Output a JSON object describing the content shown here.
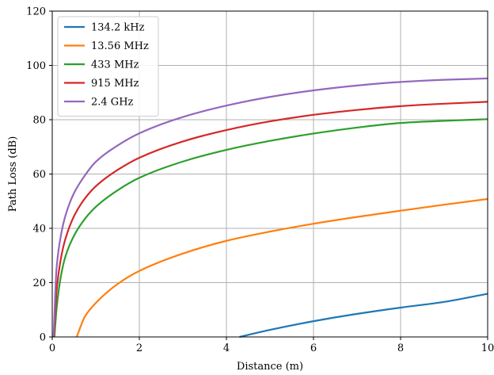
{
  "chart_data": {
    "type": "line",
    "title": "",
    "xlabel": "Distance (m)",
    "ylabel": "Path Loss (dB)",
    "xlim": [
      0,
      10
    ],
    "ylim": [
      0,
      120
    ],
    "xticks": [
      0,
      2,
      4,
      6,
      8,
      10
    ],
    "yticks": [
      0,
      20,
      40,
      60,
      80,
      100,
      120
    ],
    "grid": true,
    "legend_position": "top-left",
    "series": [
      {
        "name": "134.2 kHz",
        "color": "#1f77b4",
        "x": [
          4.3,
          5,
          6,
          7,
          8,
          9,
          10
        ],
        "y": [
          0,
          2.6,
          5.8,
          8.5,
          10.8,
          12.9,
          15.9
        ]
      },
      {
        "name": "13.56 MHz",
        "color": "#ff7f0e",
        "x": [
          0.56,
          0.75,
          1,
          1.5,
          2,
          3,
          4,
          5,
          6,
          7,
          8,
          9,
          10
        ],
        "y": [
          0,
          7.5,
          12.5,
          19.5,
          24.3,
          30.7,
          35.4,
          38.8,
          41.7,
          44.2,
          46.5,
          48.7,
          50.8
        ]
      },
      {
        "name": "433 MHz",
        "color": "#2ca02c",
        "x": [
          0.05,
          0.1,
          0.2,
          0.3,
          0.5,
          0.75,
          1,
          1.5,
          2,
          3,
          4,
          5,
          6,
          7,
          8,
          9,
          10
        ],
        "y": [
          0,
          10.5,
          22.5,
          29.5,
          37.3,
          43.5,
          47.9,
          54.0,
          58.6,
          64.6,
          68.9,
          72.2,
          74.9,
          77.1,
          78.8,
          79.6,
          80.2
        ]
      },
      {
        "name": "915 MHz",
        "color": "#d62728",
        "x": [
          0.04,
          0.1,
          0.2,
          0.3,
          0.5,
          0.75,
          1,
          1.5,
          2,
          3,
          4,
          5,
          6,
          7,
          8,
          9,
          10
        ],
        "y": [
          0,
          17.0,
          29.0,
          36.0,
          44.5,
          51.0,
          55.5,
          61.5,
          66.0,
          72.0,
          76.2,
          79.4,
          81.8,
          83.6,
          85.0,
          85.9,
          86.6
        ]
      },
      {
        "name": "2.4 GHz",
        "color": "#9467bd",
        "x": [
          0.03,
          0.1,
          0.2,
          0.3,
          0.5,
          0.75,
          1,
          1.5,
          2,
          3,
          4,
          5,
          6,
          7,
          8,
          9,
          10
        ],
        "y": [
          0,
          25.5,
          37.5,
          44.5,
          53.0,
          59.5,
          64.5,
          70.5,
          75.0,
          81.0,
          85.2,
          88.4,
          90.8,
          92.6,
          93.9,
          94.7,
          95.2
        ]
      }
    ]
  }
}
